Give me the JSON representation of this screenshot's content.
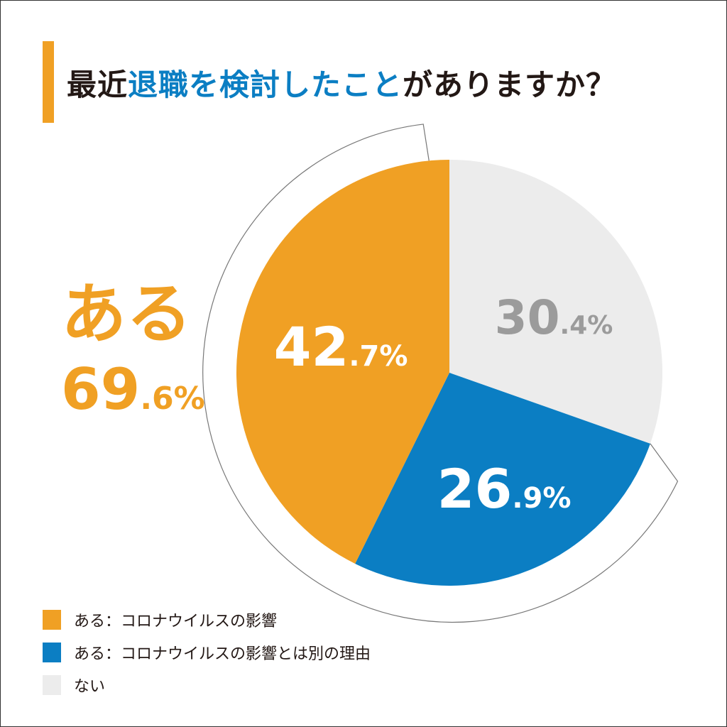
{
  "title": {
    "part1": "最近",
    "highlight": "退職を検討したこと",
    "part2": "がありますか？"
  },
  "summary": {
    "label": "ある",
    "value_main": "69",
    "value_decimal": ".6%"
  },
  "colors": {
    "accent": "#f0a024",
    "blue": "#0b7ec3",
    "grey": "#ececec",
    "text": "#231815"
  },
  "chart_data": {
    "type": "pie",
    "title": "最近退職を検討したことがありますか？",
    "slices": [
      {
        "label": "ない",
        "value": 30.4,
        "main": "30",
        "decimal": ".4%",
        "color": "#ececec",
        "text_color": "#9b9b9b"
      },
      {
        "label": "ある：コロナウイルスの影響とは別の理由",
        "value": 26.9,
        "main": "26",
        "decimal": ".9%",
        "color": "#0b7ec3",
        "text_color": "#ffffff"
      },
      {
        "label": "ある：コロナウイルスの影響",
        "value": 42.7,
        "main": "42",
        "decimal": ".7%",
        "color": "#f0a024",
        "text_color": "#ffffff"
      }
    ],
    "legend_position": "bottom-left"
  },
  "legend": [
    {
      "label": "ある：コロナウイルスの影響",
      "color": "#f0a024"
    },
    {
      "label": "ある：コロナウイルスの影響とは別の理由",
      "color": "#0b7ec3"
    },
    {
      "label": "ない",
      "color": "#ececec"
    }
  ]
}
